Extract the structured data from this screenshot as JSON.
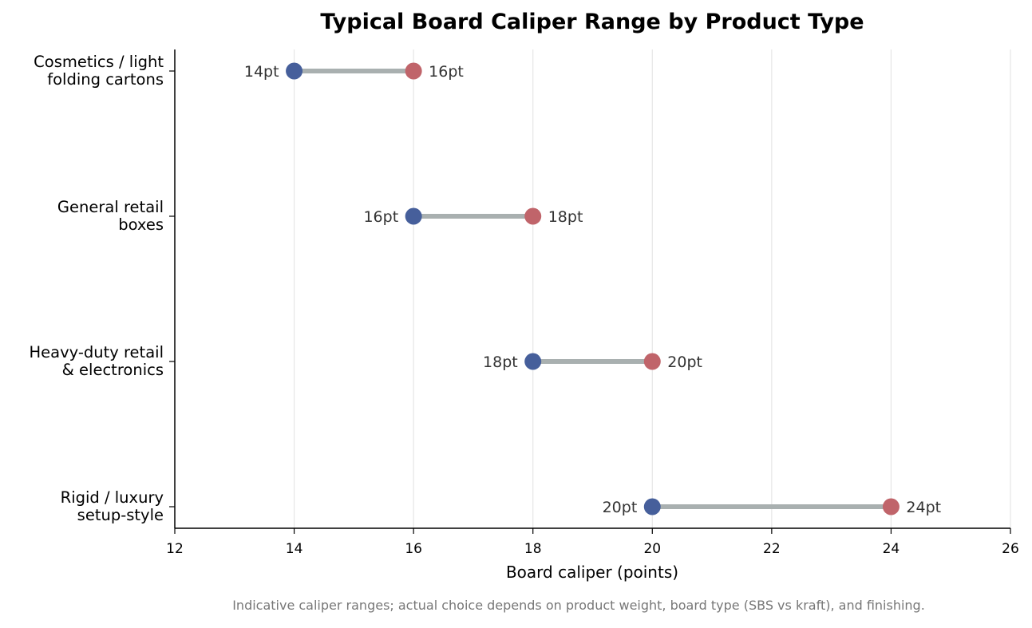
{
  "chart_data": {
    "type": "dumbbell",
    "title": "Typical Board Caliper Range by Product Type",
    "xlabel": "Board caliper (points)",
    "ylabel": "",
    "xlim": [
      12,
      26
    ],
    "xticks": [
      12,
      14,
      16,
      18,
      20,
      22,
      24,
      26
    ],
    "grid": "vertical",
    "categories": [
      {
        "label_lines": [
          "Cosmetics / light",
          "folding cartons"
        ],
        "low": 14,
        "high": 16,
        "low_label": "14pt",
        "high_label": "16pt"
      },
      {
        "label_lines": [
          "General retail",
          "boxes"
        ],
        "low": 16,
        "high": 18,
        "low_label": "16pt",
        "high_label": "18pt"
      },
      {
        "label_lines": [
          "Heavy-duty retail",
          "& electronics"
        ],
        "low": 18,
        "high": 20,
        "low_label": "18pt",
        "high_label": "20pt"
      },
      {
        "label_lines": [
          "Rigid / luxury",
          "setup-style"
        ],
        "low": 20,
        "high": 24,
        "low_label": "20pt",
        "high_label": "24pt"
      }
    ],
    "colors": {
      "low": "#465f9b",
      "high": "#c0646a",
      "connector": "#a9b0b0",
      "grid": "#e6e6e6",
      "axis": "#000000",
      "value_text": "#333333",
      "footnote": "#777777"
    }
  },
  "footnote": "Indicative caliper ranges; actual choice depends on product weight, board type (SBS vs kraft), and finishing."
}
